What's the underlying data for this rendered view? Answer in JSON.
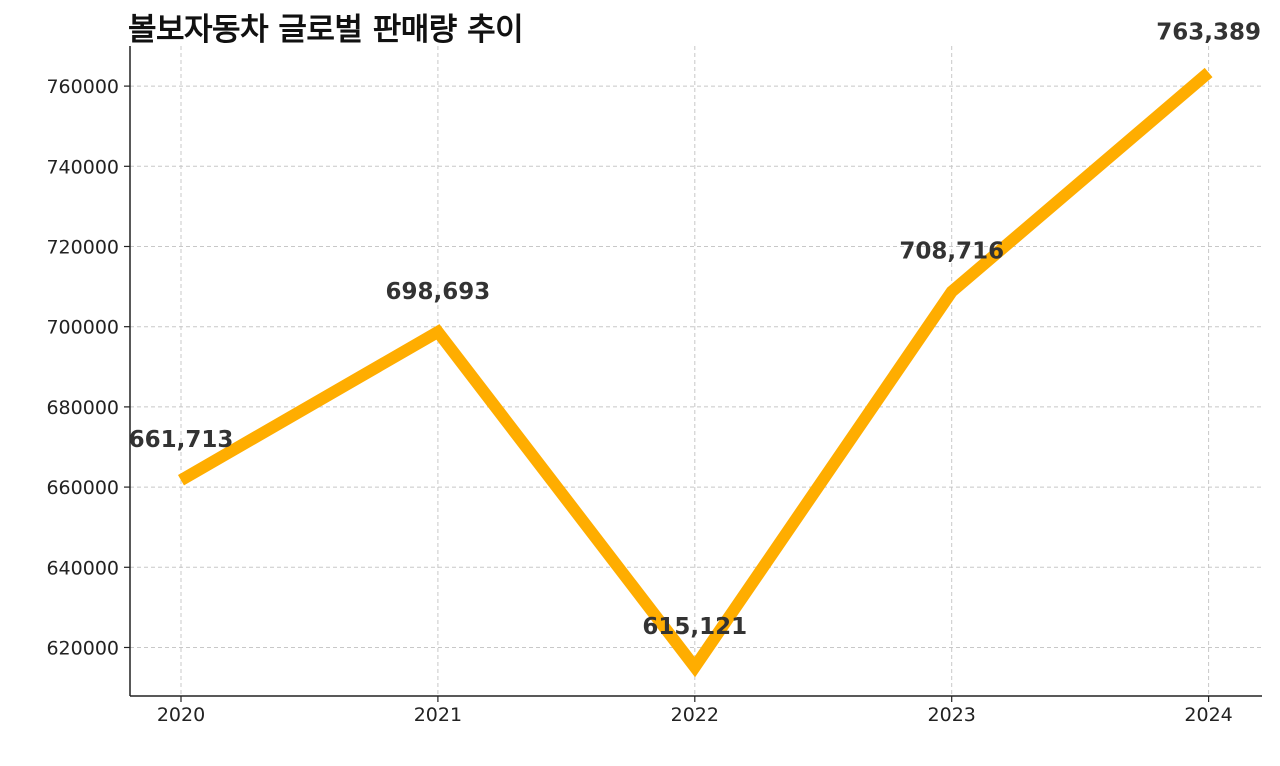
{
  "chart_data": {
    "type": "line",
    "title": "볼보자동차 글로벌 판매량 추이",
    "xlabel": "",
    "ylabel": "",
    "categories": [
      "2020",
      "2021",
      "2022",
      "2023",
      "2024"
    ],
    "series": [
      {
        "values": [
          661713,
          698693,
          615121,
          708716,
          763389
        ],
        "color": "#FFAD00"
      }
    ],
    "data_labels": [
      "661,713",
      "698,693",
      "615,121",
      "708,716",
      "763,389"
    ],
    "yticks": [
      620000,
      640000,
      660000,
      680000,
      700000,
      720000,
      740000,
      760000
    ],
    "ytick_labels": [
      "620000",
      "640000",
      "660000",
      "680000",
      "700000",
      "720000",
      "740000",
      "760000"
    ],
    "ylim": [
      607900,
      770000
    ],
    "grid": true,
    "legend": "none"
  }
}
